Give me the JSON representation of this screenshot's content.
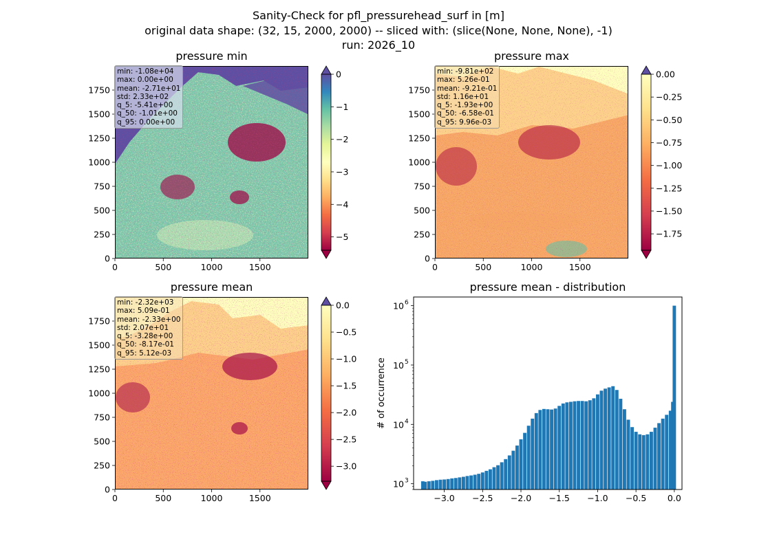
{
  "figure": {
    "title_lines": [
      "Sanity-Check for pfl_pressurehead_surf in [m]",
      "original data shape: (32, 15, 2000, 2000) -- sliced with: (slice(None, None, None), -1)",
      "run: 2026_10"
    ]
  },
  "panels": [
    {
      "id": "min",
      "title": "pressure min",
      "colormap": "Spectral",
      "colorbar_ticks": [
        "0",
        "−1",
        "−2",
        "−3",
        "−4",
        "−5"
      ],
      "colorbar_range": [
        -5.41,
        0.0
      ],
      "stats": [
        "min: -1.08e+04",
        "max: 0.00e+00",
        "mean: -2.71e+01",
        "std: 2.33e+02",
        "q_5: -5.41e+00",
        "q_50: -1.01e+00",
        "q_95: 0.00e+00"
      ]
    },
    {
      "id": "max",
      "title": "pressure max",
      "colormap": "Spectral",
      "colorbar_ticks": [
        "0.00",
        "−0.25",
        "−0.50",
        "−0.75",
        "−1.00",
        "−1.25",
        "−1.50",
        "−1.75"
      ],
      "colorbar_range": [
        -1.93,
        0.0
      ],
      "stats": [
        "min: -9.81e+02",
        "max: 5.26e-01",
        "mean: -9.21e-01",
        "std: 1.16e+01",
        "q_5: -1.93e+00",
        "q_50: -6.58e-01",
        "q_95: 9.96e-03"
      ]
    },
    {
      "id": "mean",
      "title": "pressure mean",
      "colormap": "Spectral",
      "colorbar_ticks": [
        "0.0",
        "−0.5",
        "−1.0",
        "−1.5",
        "−2.0",
        "−2.5",
        "−3.0"
      ],
      "colorbar_range": [
        -3.28,
        0.0
      ],
      "stats": [
        "min: -2.32e+03",
        "max: 5.09e-01",
        "mean: -2.33e+00",
        "std: 2.07e+01",
        "q_5: -3.28e+00",
        "q_50: -8.17e-01",
        "q_95: 5.12e-03"
      ]
    }
  ],
  "map_axes": {
    "x_ticks": [
      "0",
      "500",
      "1000",
      "1500"
    ],
    "y_ticks": [
      "0",
      "250",
      "500",
      "750",
      "1000",
      "1250",
      "1500",
      "1750"
    ],
    "x_range": [
      0,
      2000
    ],
    "y_range": [
      0,
      2000
    ]
  },
  "chart_data": {
    "type": "bar",
    "title": "pressure mean - distribution",
    "ylabel": "# of occurrence",
    "xlabel": "",
    "yscale": "log",
    "ylim": [
      800,
      1400000
    ],
    "xlim": [
      -3.4,
      0.1
    ],
    "x_ticks": [
      "−3.0",
      "−2.5",
      "−2.0",
      "−1.5",
      "−1.0",
      "−0.5",
      "0.0"
    ],
    "y_ticks": [
      "10",
      "10",
      "10",
      "10"
    ],
    "y_tick_exponents": [
      "3",
      "4",
      "5",
      "6"
    ],
    "bar_color": "#1f77b4",
    "bins": [
      {
        "x": -3.28,
        "y": 1100
      },
      {
        "x": -3.25,
        "y": 1080
      },
      {
        "x": -3.2,
        "y": 1100
      },
      {
        "x": -3.15,
        "y": 1120
      },
      {
        "x": -3.1,
        "y": 1150
      },
      {
        "x": -3.05,
        "y": 1170
      },
      {
        "x": -3.0,
        "y": 1180
      },
      {
        "x": -2.95,
        "y": 1200
      },
      {
        "x": -2.9,
        "y": 1230
      },
      {
        "x": -2.85,
        "y": 1250
      },
      {
        "x": -2.8,
        "y": 1280
      },
      {
        "x": -2.75,
        "y": 1310
      },
      {
        "x": -2.7,
        "y": 1350
      },
      {
        "x": -2.65,
        "y": 1380
      },
      {
        "x": -2.6,
        "y": 1420
      },
      {
        "x": -2.55,
        "y": 1470
      },
      {
        "x": -2.5,
        "y": 1550
      },
      {
        "x": -2.45,
        "y": 1650
      },
      {
        "x": -2.4,
        "y": 1750
      },
      {
        "x": -2.35,
        "y": 1900
      },
      {
        "x": -2.3,
        "y": 2050
      },
      {
        "x": -2.25,
        "y": 2300
      },
      {
        "x": -2.2,
        "y": 2600
      },
      {
        "x": -2.15,
        "y": 3000
      },
      {
        "x": -2.1,
        "y": 3600
      },
      {
        "x": -2.05,
        "y": 4400
      },
      {
        "x": -2.0,
        "y": 5600
      },
      {
        "x": -1.95,
        "y": 7200
      },
      {
        "x": -1.9,
        "y": 9500
      },
      {
        "x": -1.85,
        "y": 12500
      },
      {
        "x": -1.8,
        "y": 15500
      },
      {
        "x": -1.75,
        "y": 17500
      },
      {
        "x": -1.7,
        "y": 18200
      },
      {
        "x": -1.65,
        "y": 18000
      },
      {
        "x": -1.6,
        "y": 17800
      },
      {
        "x": -1.55,
        "y": 18500
      },
      {
        "x": -1.5,
        "y": 20500
      },
      {
        "x": -1.45,
        "y": 22500
      },
      {
        "x": -1.4,
        "y": 23500
      },
      {
        "x": -1.35,
        "y": 24000
      },
      {
        "x": -1.3,
        "y": 24500
      },
      {
        "x": -1.25,
        "y": 24800
      },
      {
        "x": -1.2,
        "y": 24800
      },
      {
        "x": -1.15,
        "y": 24500
      },
      {
        "x": -1.1,
        "y": 25500
      },
      {
        "x": -1.05,
        "y": 27500
      },
      {
        "x": -1.0,
        "y": 32000
      },
      {
        "x": -0.95,
        "y": 37000
      },
      {
        "x": -0.9,
        "y": 40000
      },
      {
        "x": -0.85,
        "y": 42000
      },
      {
        "x": -0.8,
        "y": 44000
      },
      {
        "x": -0.75,
        "y": 38000
      },
      {
        "x": -0.7,
        "y": 27000
      },
      {
        "x": -0.65,
        "y": 18000
      },
      {
        "x": -0.6,
        "y": 12000
      },
      {
        "x": -0.55,
        "y": 9000
      },
      {
        "x": -0.5,
        "y": 7500
      },
      {
        "x": -0.45,
        "y": 6800
      },
      {
        "x": -0.4,
        "y": 6600
      },
      {
        "x": -0.35,
        "y": 6800
      },
      {
        "x": -0.3,
        "y": 7500
      },
      {
        "x": -0.25,
        "y": 8800
      },
      {
        "x": -0.2,
        "y": 10500
      },
      {
        "x": -0.15,
        "y": 12500
      },
      {
        "x": -0.1,
        "y": 14500
      },
      {
        "x": -0.05,
        "y": 17000
      },
      {
        "x": -0.02,
        "y": 24000
      },
      {
        "x": 0.0,
        "y": 1000000
      }
    ]
  }
}
